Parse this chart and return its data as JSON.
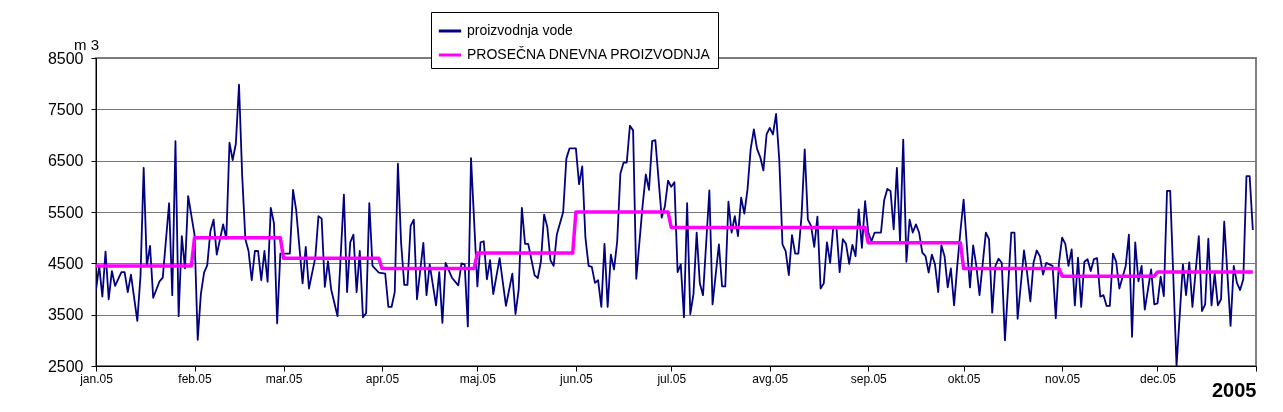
{
  "chart_data": {
    "type": "line",
    "xlabel": "2005",
    "ylabel": "m 3",
    "legend": "top",
    "grid": "y",
    "xlim": [
      "2005-01-01",
      "2006-01-01"
    ],
    "xticks": [
      {
        "value": "2005-01-01",
        "label": "jan.05"
      },
      {
        "value": "2005-02-01",
        "label": "feb.05"
      },
      {
        "value": "2005-03-01",
        "label": "mar.05"
      },
      {
        "value": "2005-04-01",
        "label": "apr.05"
      },
      {
        "value": "2005-05-01",
        "label": "maj.05"
      },
      {
        "value": "2005-06-01",
        "label": "jun.05"
      },
      {
        "value": "2005-07-01",
        "label": "jul.05"
      },
      {
        "value": "2005-08-01",
        "label": "avg.05"
      },
      {
        "value": "2005-09-01",
        "label": "sep.05"
      },
      {
        "value": "2005-10-01",
        "label": "okt.05"
      },
      {
        "value": "2005-11-01",
        "label": "nov.05"
      },
      {
        "value": "2005-12-01",
        "label": "dec.05"
      },
      {
        "value": "2006-01-01",
        "label": null
      }
    ],
    "ylim": [
      2500,
      8500
    ],
    "yticks": [
      2500,
      3500,
      4500,
      5500,
      6500,
      7500,
      8500
    ],
    "series": [
      {
        "name": "proizvodnja vode",
        "color": "#000080",
        "x": [
          "2005-01-01",
          "2005-01-02",
          "2005-01-03",
          "2005-01-04",
          "2005-01-05",
          "2005-01-06",
          "2005-01-07",
          "2005-01-09",
          "2005-01-10",
          "2005-01-11",
          "2005-01-12",
          "2005-01-14",
          "2005-01-15",
          "2005-01-16",
          "2005-01-17",
          "2005-01-18",
          "2005-01-19",
          "2005-01-21",
          "2005-01-22",
          "2005-01-24",
          "2005-01-25",
          "2005-01-26",
          "2005-01-27",
          "2005-01-28",
          "2005-01-29",
          "2005-01-30",
          "2005-02-01",
          "2005-02-02",
          "2005-02-03",
          "2005-02-04",
          "2005-02-05",
          "2005-02-06",
          "2005-02-07",
          "2005-02-08",
          "2005-02-10",
          "2005-02-11",
          "2005-02-12",
          "2005-02-13",
          "2005-02-14",
          "2005-02-15",
          "2005-02-16",
          "2005-02-17",
          "2005-02-18",
          "2005-02-19",
          "2005-02-20",
          "2005-02-21",
          "2005-02-22",
          "2005-02-23",
          "2005-02-24",
          "2005-02-25",
          "2005-02-26",
          "2005-02-27",
          "2005-02-28",
          "2005-03-03",
          "2005-03-04",
          "2005-03-05",
          "2005-03-07",
          "2005-03-08",
          "2005-03-09",
          "2005-03-11",
          "2005-03-12",
          "2005-03-13",
          "2005-03-14",
          "2005-03-15",
          "2005-03-16",
          "2005-03-18",
          "2005-03-20",
          "2005-03-21",
          "2005-03-22",
          "2005-03-23",
          "2005-03-24",
          "2005-03-25",
          "2005-03-26",
          "2005-03-27",
          "2005-03-28",
          "2005-03-29",
          "2005-03-31",
          "2005-04-02",
          "2005-04-03",
          "2005-04-04",
          "2005-04-05",
          "2005-04-06",
          "2005-04-07",
          "2005-04-08",
          "2005-04-09",
          "2005-04-10",
          "2005-04-11",
          "2005-04-12",
          "2005-04-14",
          "2005-04-15",
          "2005-04-16",
          "2005-04-18",
          "2005-04-19",
          "2005-04-20",
          "2005-04-21",
          "2005-04-23",
          "2005-04-25",
          "2005-04-26",
          "2005-04-27",
          "2005-04-28",
          "2005-04-29",
          "2005-05-01",
          "2005-05-02",
          "2005-05-03",
          "2005-05-04",
          "2005-05-05",
          "2005-05-06",
          "2005-05-08",
          "2005-05-10",
          "2005-05-12",
          "2005-05-13",
          "2005-05-14",
          "2005-05-15",
          "2005-05-16",
          "2005-05-17",
          "2005-05-19",
          "2005-05-20",
          "2005-05-21",
          "2005-05-22",
          "2005-05-23",
          "2005-05-24",
          "2005-05-25",
          "2005-05-26",
          "2005-05-28",
          "2005-05-29",
          "2005-05-30",
          "2005-06-01",
          "2005-06-02",
          "2005-06-03",
          "2005-06-04",
          "2005-06-05",
          "2005-06-06",
          "2005-06-07",
          "2005-06-08",
          "2005-06-09",
          "2005-06-10",
          "2005-06-11",
          "2005-06-12",
          "2005-06-13",
          "2005-06-14",
          "2005-06-15",
          "2005-06-16",
          "2005-06-17",
          "2005-06-18",
          "2005-06-19",
          "2005-06-20",
          "2005-06-22",
          "2005-06-23",
          "2005-06-24",
          "2005-06-25",
          "2005-06-26",
          "2005-06-28",
          "2005-06-29",
          "2005-06-30",
          "2005-07-01",
          "2005-07-02",
          "2005-07-03",
          "2005-07-04",
          "2005-07-05",
          "2005-07-06",
          "2005-07-07",
          "2005-07-08",
          "2005-07-09",
          "2005-07-10",
          "2005-07-11",
          "2005-07-13",
          "2005-07-14",
          "2005-07-16",
          "2005-07-17",
          "2005-07-18",
          "2005-07-19",
          "2005-07-20",
          "2005-07-21",
          "2005-07-22",
          "2005-07-23",
          "2005-07-24",
          "2005-07-25",
          "2005-07-26",
          "2005-07-27",
          "2005-07-28",
          "2005-07-29",
          "2005-07-30",
          "2005-07-31",
          "2005-08-01",
          "2005-08-02",
          "2005-08-03",
          "2005-08-04",
          "2005-08-05",
          "2005-08-06",
          "2005-08-07",
          "2005-08-08",
          "2005-08-09",
          "2005-08-10",
          "2005-08-11",
          "2005-08-12",
          "2005-08-13",
          "2005-08-14",
          "2005-08-15",
          "2005-08-16",
          "2005-08-17",
          "2005-08-18",
          "2005-08-19",
          "2005-08-20",
          "2005-08-21",
          "2005-08-22",
          "2005-08-23",
          "2005-08-24",
          "2005-08-25",
          "2005-08-26",
          "2005-08-27",
          "2005-08-28",
          "2005-08-29",
          "2005-08-30",
          "2005-08-31",
          "2005-09-01",
          "2005-09-02",
          "2005-09-03",
          "2005-09-05",
          "2005-09-06",
          "2005-09-07",
          "2005-09-08",
          "2005-09-09",
          "2005-09-10",
          "2005-09-11",
          "2005-09-12",
          "2005-09-13",
          "2005-09-14",
          "2005-09-15",
          "2005-09-16",
          "2005-09-17",
          "2005-09-18",
          "2005-09-19",
          "2005-09-20",
          "2005-09-21",
          "2005-09-22",
          "2005-09-23",
          "2005-09-24",
          "2005-09-25",
          "2005-09-26",
          "2005-09-27",
          "2005-09-28",
          "2005-09-29",
          "2005-09-30",
          "2005-10-01",
          "2005-10-02",
          "2005-10-03",
          "2005-10-04",
          "2005-10-05",
          "2005-10-06",
          "2005-10-08",
          "2005-10-09",
          "2005-10-10",
          "2005-10-11",
          "2005-10-12",
          "2005-10-13",
          "2005-10-14",
          "2005-10-16",
          "2005-10-17",
          "2005-10-18",
          "2005-10-20",
          "2005-10-21",
          "2005-10-22",
          "2005-10-23",
          "2005-10-24",
          "2005-10-25",
          "2005-10-26",
          "2005-10-27",
          "2005-10-29",
          "2005-10-30",
          "2005-10-31",
          "2005-11-01",
          "2005-11-02",
          "2005-11-03",
          "2005-11-04",
          "2005-11-05",
          "2005-11-06",
          "2005-11-07",
          "2005-11-08",
          "2005-11-09",
          "2005-11-10",
          "2005-11-11",
          "2005-11-12",
          "2005-11-13",
          "2005-11-14",
          "2005-11-15",
          "2005-11-16",
          "2005-11-17",
          "2005-11-18",
          "2005-11-19",
          "2005-11-21",
          "2005-11-22",
          "2005-11-23",
          "2005-11-24",
          "2005-11-25",
          "2005-11-26",
          "2005-11-27",
          "2005-11-29",
          "2005-11-30",
          "2005-12-01",
          "2005-12-02",
          "2005-12-03",
          "2005-12-04",
          "2005-12-05",
          "2005-12-07",
          "2005-12-09",
          "2005-12-10",
          "2005-12-11",
          "2005-12-12",
          "2005-12-14",
          "2005-12-15",
          "2005-12-16",
          "2005-12-17",
          "2005-12-18",
          "2005-12-19",
          "2005-12-20",
          "2005-12-21",
          "2005-12-22",
          "2005-12-24",
          "2005-12-25",
          "2005-12-26",
          "2005-12-27",
          "2005-12-28",
          "2005-12-29",
          "2005-12-30",
          "2005-12-31"
        ],
        "values": [
          3980,
          4450,
          3850,
          4730,
          3800,
          4350,
          4060,
          4330,
          4330,
          3940,
          4280,
          3380,
          4250,
          6360,
          4450,
          4840,
          3830,
          4150,
          4220,
          5670,
          3880,
          6880,
          3470,
          5030,
          4400,
          5810,
          5060,
          3010,
          3900,
          4320,
          4460,
          5130,
          5350,
          4670,
          5260,
          4980,
          6850,
          6510,
          6830,
          7980,
          6200,
          4970,
          4740,
          4170,
          4740,
          4740,
          4170,
          4740,
          4140,
          5580,
          5280,
          3330,
          4690,
          4690,
          5930,
          5530,
          4110,
          4820,
          4010,
          4610,
          5420,
          5370,
          4040,
          4540,
          3990,
          3470,
          5840,
          3940,
          4910,
          5060,
          3940,
          4740,
          3450,
          3530,
          5670,
          4450,
          4320,
          4300,
          3650,
          3650,
          3940,
          6440,
          4900,
          4080,
          4080,
          5230,
          5350,
          3800,
          4900,
          3880,
          4480,
          3680,
          4330,
          3340,
          4510,
          4220,
          4070,
          4500,
          4480,
          3270,
          6550,
          4050,
          4910,
          4930,
          4190,
          4560,
          3900,
          4600,
          3670,
          4300,
          3510,
          3990,
          5580,
          4880,
          4880,
          4270,
          4210,
          4540,
          5450,
          5210,
          4560,
          4450,
          5060,
          5500,
          6540,
          6740,
          6740,
          6040,
          6390,
          5000,
          4450,
          4430,
          4120,
          4170,
          3650,
          4880,
          3650,
          4670,
          4380,
          4930,
          6250,
          6460,
          6460,
          7180,
          7090,
          4200,
          5630,
          6230,
          5930,
          6880,
          6900,
          5390,
          5610,
          6110,
          5990,
          6080,
          4330,
          4480,
          3450,
          5670,
          3510,
          3900,
          5100,
          4110,
          3880,
          5920,
          3700,
          4870,
          4050,
          4050,
          5700,
          5100,
          5420,
          5030,
          5780,
          5470,
          5940,
          6730,
          7110,
          6730,
          6570,
          6310,
          7010,
          7140,
          7010,
          7410,
          6510,
          4870,
          4740,
          4270,
          5050,
          4690,
          4690,
          5420,
          6720,
          5350,
          5230,
          4820,
          5410,
          4010,
          4110,
          4910,
          4510,
          5210,
          5180,
          4330,
          4970,
          4880,
          4490,
          4860,
          4640,
          5550,
          4800,
          5710,
          5100,
          4930,
          5100,
          5100,
          5730,
          5950,
          5910,
          5160,
          6360,
          4930,
          6910,
          4530,
          5350,
          5100,
          5260,
          5100,
          4710,
          4640,
          4320,
          4670,
          4480,
          3940,
          4850,
          4640,
          4030,
          4400,
          3680,
          4450,
          5130,
          5740,
          4870,
          4030,
          4850,
          4450,
          3880,
          5100,
          4970,
          3540,
          4450,
          4590,
          4510,
          3000,
          5100,
          5100,
          3420,
          4750,
          4300,
          3760,
          4510,
          4750,
          4640,
          4280,
          4510,
          4450,
          3430,
          4510,
          5000,
          4880,
          4450,
          4770,
          3680,
          4610,
          3650,
          4530,
          4580,
          4350,
          4580,
          4600,
          3850,
          3880,
          3670,
          3670,
          4690,
          4530,
          4010,
          4450,
          5060,
          3070,
          4910,
          4150,
          4450,
          3600,
          4380,
          3700,
          3720,
          4240,
          3860,
          5910,
          5910,
          2500,
          4480,
          3880,
          4520,
          3650,
          5030,
          3570,
          3700,
          4980,
          3680,
          4300,
          3680,
          3800,
          5310,
          3280,
          4450,
          4120,
          3980,
          4190,
          6200,
          6200,
          5150
        ]
      },
      {
        "name": "PROSEČNA DNEVNA PROIZVODNJA",
        "color": "#ff00ff",
        "x": [
          "2005-01-01",
          "2005-01-31",
          "2005-02-01",
          "2005-02-28",
          "2005-03-01",
          "2005-03-31",
          "2005-04-01",
          "2005-04-30",
          "2005-05-01",
          "2005-05-31",
          "2005-06-01",
          "2005-06-30",
          "2005-07-01",
          "2005-07-31",
          "2005-08-01",
          "2005-08-31",
          "2005-09-01",
          "2005-09-30",
          "2005-10-01",
          "2005-10-31",
          "2005-11-01",
          "2005-11-30",
          "2005-12-01",
          "2005-12-31"
        ],
        "values": [
          4450,
          4450,
          5000,
          5000,
          4600,
          4600,
          4400,
          4400,
          4700,
          4700,
          5500,
          5500,
          5200,
          5200,
          5200,
          5200,
          4900,
          4900,
          4400,
          4400,
          4250,
          4250,
          4330,
          4330
        ]
      }
    ]
  }
}
